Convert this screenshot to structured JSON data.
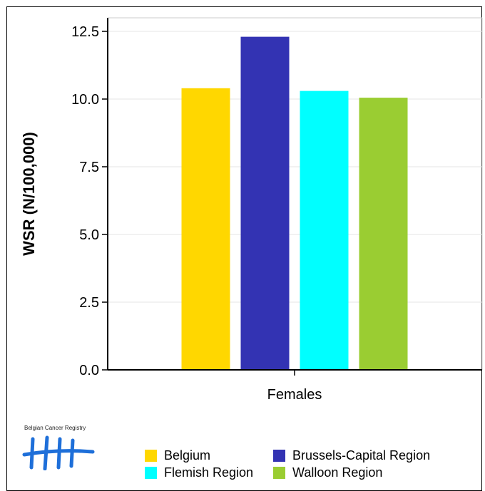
{
  "chart_data": {
    "type": "bar",
    "title": "",
    "xlabel": "",
    "ylabel": "WSR (N/100,000)",
    "ylim": [
      0,
      13
    ],
    "yticks": [
      "0.0",
      "2.5",
      "5.0",
      "7.5",
      "10.0",
      "12.5"
    ],
    "ytick_values": [
      0,
      2.5,
      5,
      7.5,
      10,
      12.5
    ],
    "grid": true,
    "categories": [
      "Females"
    ],
    "series": [
      {
        "name": "Belgium",
        "values": [
          10.4
        ],
        "color": "#FFD700"
      },
      {
        "name": "Brussels-Capital Region",
        "values": [
          12.3
        ],
        "color": "#3333B3"
      },
      {
        "name": "Flemish Region",
        "values": [
          10.3
        ],
        "color": "#00FFFF"
      },
      {
        "name": "Walloon Region",
        "values": [
          10.05
        ],
        "color": "#9ACD32"
      }
    ],
    "legend_position": "bottom"
  },
  "logo": {
    "text": "Belgian Cancer Registry",
    "color": "#1E6FD9"
  }
}
